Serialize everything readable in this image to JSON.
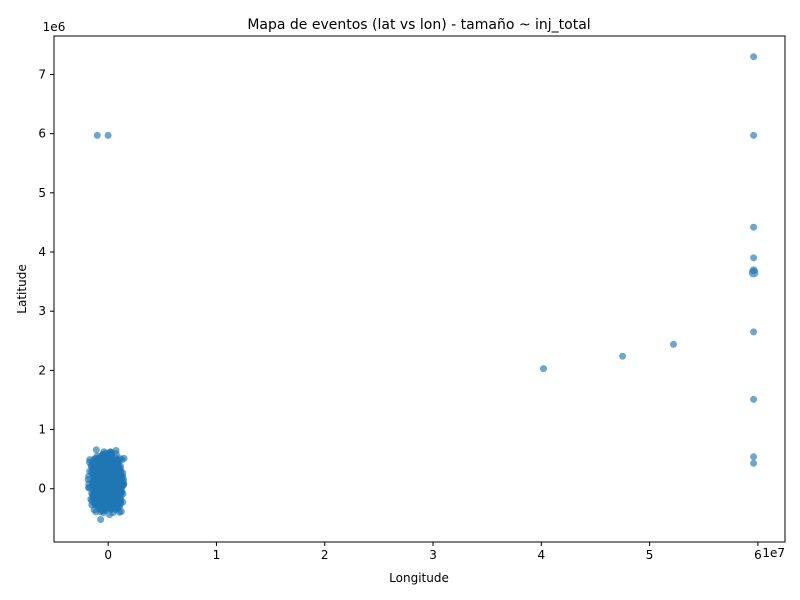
{
  "chart_data": {
    "type": "scatter",
    "title": "Mapa de eventos (lat vs lon) - tamaño ~ inj_total",
    "xlabel": "Longitude",
    "ylabel": "Latitude",
    "x_offset_label": "1e7",
    "y_offset_label": "1e6",
    "xlim": [
      -5000000,
      62500000
    ],
    "ylim": [
      -900000,
      7650000
    ],
    "xticks": [
      {
        "value": 0,
        "label": "0"
      },
      {
        "value": 10000000,
        "label": "1"
      },
      {
        "value": 20000000,
        "label": "2"
      },
      {
        "value": 30000000,
        "label": "3"
      },
      {
        "value": 40000000,
        "label": "4"
      },
      {
        "value": 50000000,
        "label": "5"
      },
      {
        "value": 60000000,
        "label": "6"
      }
    ],
    "yticks": [
      {
        "value": 0,
        "label": "0"
      },
      {
        "value": 1000000,
        "label": "1"
      },
      {
        "value": 2000000,
        "label": "2"
      },
      {
        "value": 3000000,
        "label": "3"
      },
      {
        "value": 4000000,
        "label": "4"
      },
      {
        "value": 5000000,
        "label": "5"
      },
      {
        "value": 6000000,
        "label": "6"
      },
      {
        "value": 7000000,
        "label": "7"
      }
    ],
    "marker_color": "#1f77b4",
    "marker_alpha": 0.65,
    "grid": false,
    "legend": "none",
    "outlier_points": [
      {
        "x": 59600000,
        "y": 7300000,
        "inj_total": 1
      },
      {
        "x": -1000000,
        "y": 5970000,
        "inj_total": 1
      },
      {
        "x": 0,
        "y": 5970000,
        "inj_total": 1
      },
      {
        "x": 59600000,
        "y": 5970000,
        "inj_total": 1
      },
      {
        "x": 59600000,
        "y": 4420000,
        "inj_total": 1
      },
      {
        "x": 59600000,
        "y": 3900000,
        "inj_total": 1
      },
      {
        "x": 59600000,
        "y": 3690000,
        "inj_total": 2
      },
      {
        "x": 59600000,
        "y": 3650000,
        "inj_total": 4
      },
      {
        "x": 59600000,
        "y": 2650000,
        "inj_total": 1
      },
      {
        "x": 52200000,
        "y": 2440000,
        "inj_total": 1
      },
      {
        "x": 47500000,
        "y": 2240000,
        "inj_total": 1
      },
      {
        "x": 40200000,
        "y": 2030000,
        "inj_total": 1
      },
      {
        "x": 59600000,
        "y": 1510000,
        "inj_total": 1
      },
      {
        "x": 59600000,
        "y": 540000,
        "inj_total": 1
      },
      {
        "x": 59600000,
        "y": 430000,
        "inj_total": 1
      },
      {
        "x": -700000,
        "y": -520000,
        "inj_total": 1
      }
    ],
    "dense_cluster": {
      "x_range": [
        -2000000,
        1800000
      ],
      "y_range": [
        -500000,
        720000
      ]
    }
  }
}
